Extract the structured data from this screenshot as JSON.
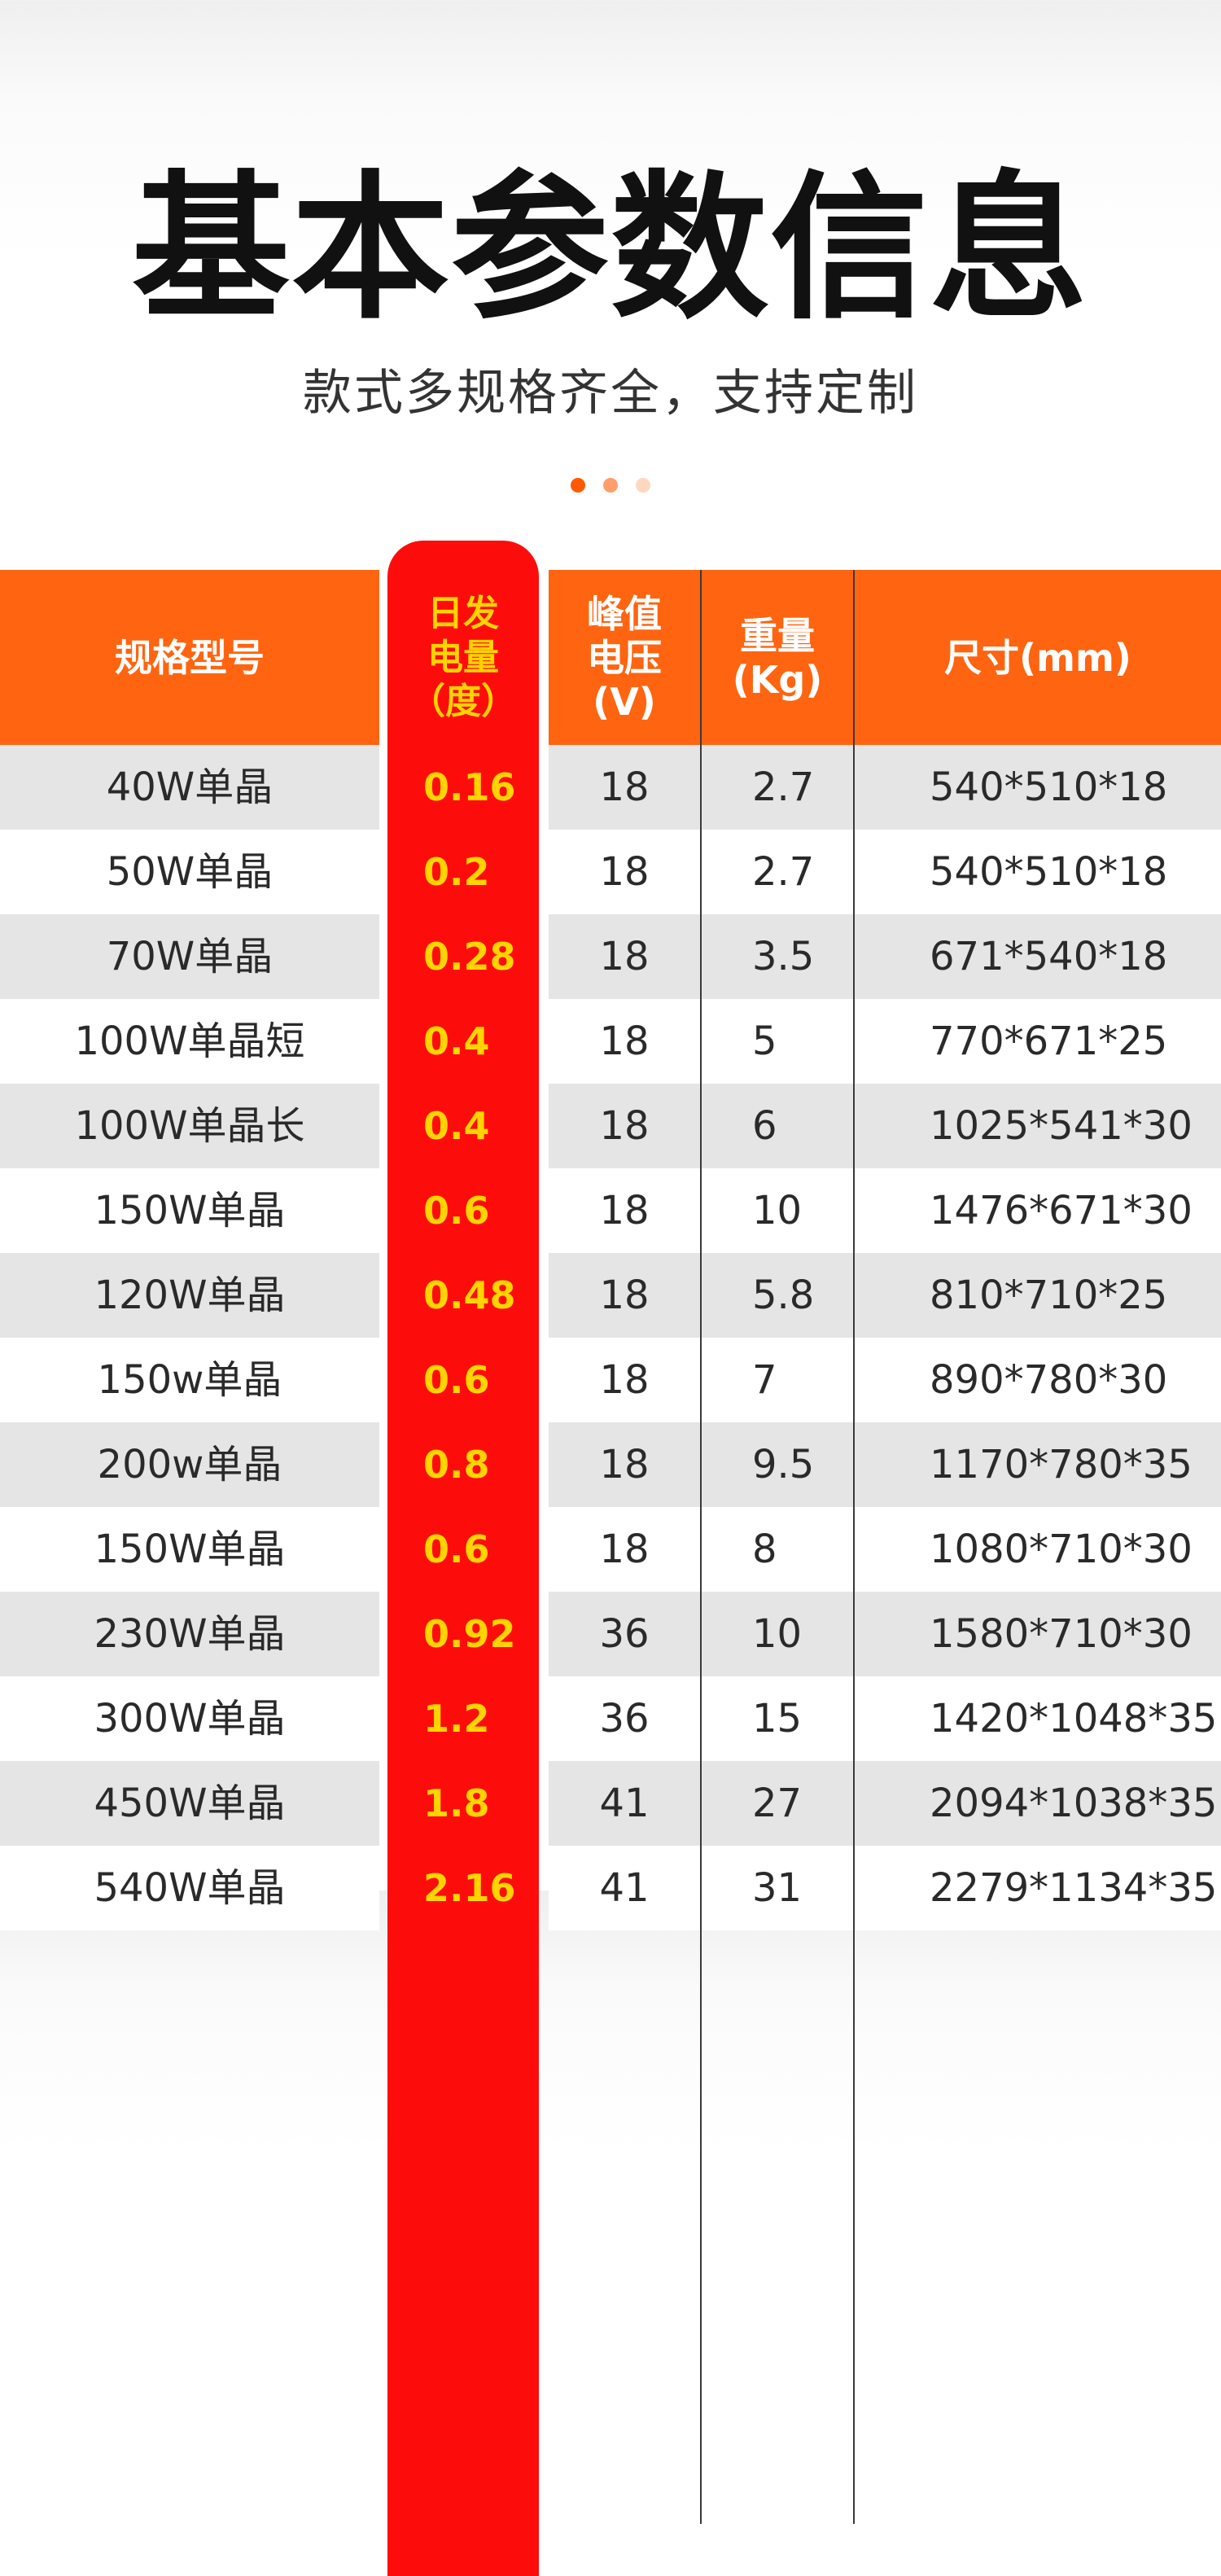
{
  "header": {
    "title": "基本参数信息",
    "subtitle": "款式多规格齐全，支持定制"
  },
  "pagination": {
    "dots": [
      {
        "color": "#ff5a00"
      },
      {
        "color": "#ff9e6a"
      },
      {
        "color": "#ffd6c0"
      }
    ]
  },
  "colors": {
    "header_orange": "#ff6410",
    "highlight_red": "#fc0d0c",
    "highlight_text": "#ffd400",
    "row_gray": "#e5e5e5",
    "row_white": "#ffffff"
  },
  "table": {
    "columns": [
      "规格型号",
      "日发\n电量\n（度）",
      "峰值\n电压\n(V)",
      "重量\n(Kg)",
      "尺寸(mm)"
    ],
    "rows": [
      [
        "40W单晶",
        "0.16",
        "18",
        "2.7",
        "540*510*18"
      ],
      [
        "50W单晶",
        "0.2",
        "18",
        "2.7",
        "540*510*18"
      ],
      [
        "70W单晶",
        "0.28",
        "18",
        "3.5",
        "671*540*18"
      ],
      [
        "100W单晶短",
        "0.4",
        "18",
        "5",
        "770*671*25"
      ],
      [
        "100W单晶长",
        "0.4",
        "18",
        "6",
        "1025*541*30"
      ],
      [
        "150W单晶",
        "0.6",
        "18",
        "10",
        "1476*671*30"
      ],
      [
        "120W单晶",
        "0.48",
        "18",
        "5.8",
        "810*710*25"
      ],
      [
        "150w单晶",
        "0.6",
        "18",
        "7",
        "890*780*30"
      ],
      [
        "200w单晶",
        "0.8",
        "18",
        "9.5",
        "1170*780*35"
      ],
      [
        "150W单晶",
        "0.6",
        "18",
        "8",
        "1080*710*30"
      ],
      [
        "230W单晶",
        "0.92",
        "36",
        "10",
        "1580*710*30"
      ],
      [
        "300W单晶",
        "1.2",
        "36",
        "15",
        "1420*1048*35"
      ],
      [
        "450W单晶",
        "1.8",
        "41",
        "27",
        "2094*1038*35"
      ],
      [
        "540W单晶",
        "2.16",
        "41",
        "31",
        "2279*1134*35"
      ]
    ]
  }
}
